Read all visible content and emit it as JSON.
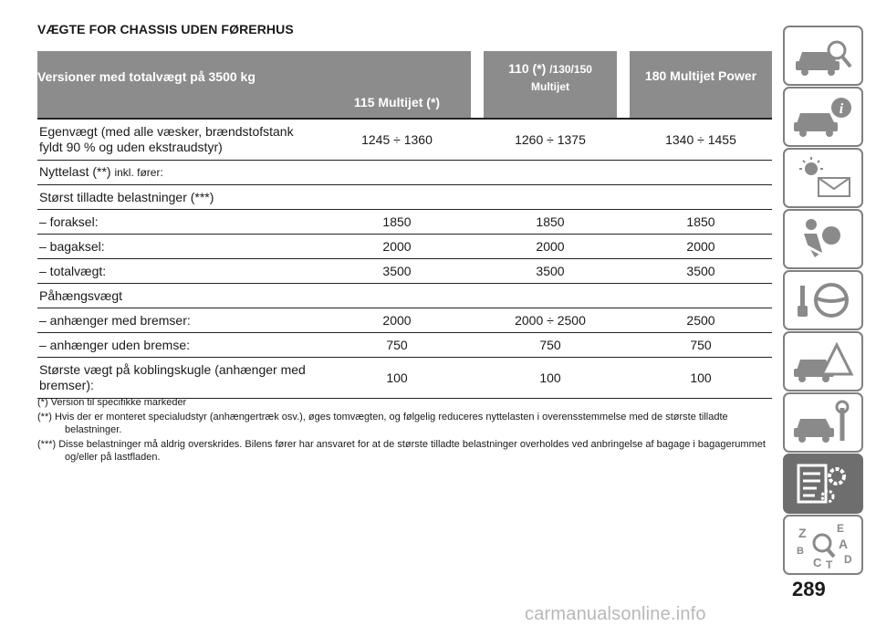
{
  "title": "VÆGTE FOR CHASSIS UDEN FØRERHUS",
  "table": {
    "headers": {
      "col0": "Versioner med totalvægt på 3500 kg",
      "col1": "115 Multijet (*)",
      "col2_a": "110 (*)",
      "col2_b": "/130/150",
      "col2_c": "Multijet",
      "col3": "180 Multijet Power"
    },
    "rows": [
      {
        "label_a": "Egenvægt (med alle væsker, brændstofstank",
        "label_b": "fyldt 90 % og uden ekstraudstyr)",
        "v1": "1245 ÷ 1360",
        "v2": "1260 ÷ 1375",
        "v3": "1340 ÷ 1455"
      },
      {
        "label_a": "Nyttelast (**) ",
        "label_b": "inkl. fører:",
        "v1": "",
        "v2": "",
        "v3": ""
      },
      {
        "label": "Størst tilladte belastninger (***)",
        "v1": "",
        "v2": "",
        "v3": ""
      },
      {
        "label": "– foraksel:",
        "v1": "1850",
        "v2": "1850",
        "v3": "1850"
      },
      {
        "label": "– bagaksel:",
        "v1": "2000",
        "v2": "2000",
        "v3": "2000"
      },
      {
        "label": "– totalvægt:",
        "v1": "3500",
        "v2": "3500",
        "v3": "3500"
      },
      {
        "label": "Påhængsvægt",
        "v1": "",
        "v2": "",
        "v3": ""
      },
      {
        "label": "– anhænger med bremser:",
        "v1": "2000",
        "v2": "2000 ÷ 2500",
        "v3": "2500"
      },
      {
        "label": "– anhænger uden bremse:",
        "v1": "750",
        "v2": "750",
        "v3": "750"
      },
      {
        "label_a": "Største vægt på koblingskugle (anhænger med",
        "label_b": "bremser):",
        "v1": "100",
        "v2": "100",
        "v3": "100"
      }
    ]
  },
  "footnotes": {
    "f1": "(*) Version til specifikke markeder",
    "f2": "(**) Hvis der er monteret specialudstyr (anhængertræk osv.), øges tomvægten, og følgelig reduceres nyttelasten i overensstemmelse med de største tilladte belastninger.",
    "f3": "(***) Disse belastninger må aldrig overskrides. Bilens fører har ansvaret for at de største tilladte belastninger overholdes ved anbringelse af bagage i bagagerummet og/eller på lastfladen."
  },
  "sidebar_tabs": [
    {
      "icon": "car-search-icon"
    },
    {
      "icon": "car-info-icon"
    },
    {
      "icon": "warning-lights-icon"
    },
    {
      "icon": "airbag-passenger-icon"
    },
    {
      "icon": "steering-wheel-icon"
    },
    {
      "icon": "car-warning-triangle-icon"
    },
    {
      "icon": "car-wrench-icon"
    },
    {
      "icon": "specifications-gear-icon",
      "active": true
    },
    {
      "icon": "alphabetical-index-icon"
    }
  ],
  "page_number": "289",
  "watermark": "carmanualsonline.info",
  "colors": {
    "header_bg": "#8c8c8c",
    "tab_border": "#808080",
    "tab_active": "#6e6e6e"
  }
}
